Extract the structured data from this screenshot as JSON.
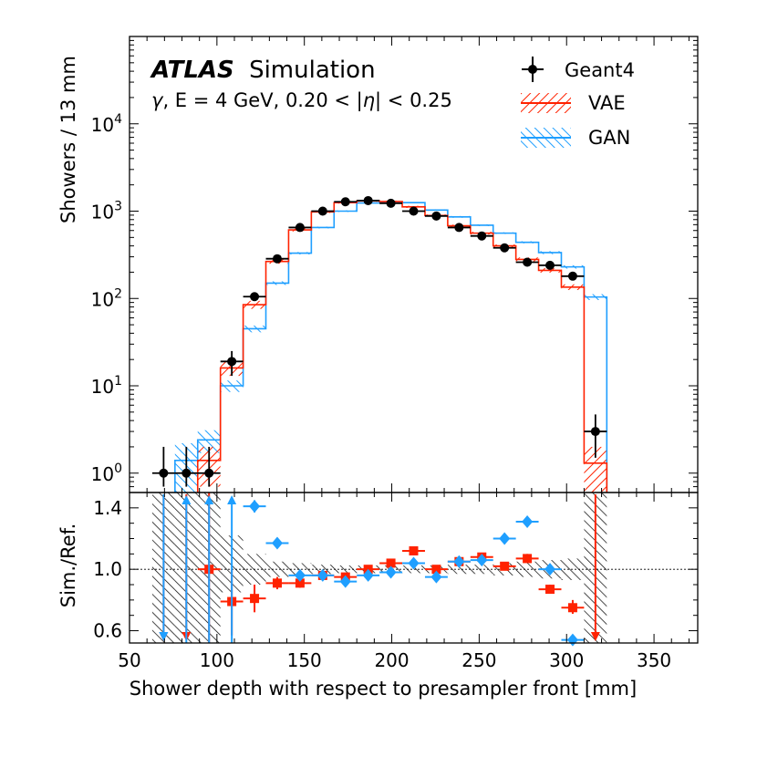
{
  "chart_data": [
    {
      "panel": "main",
      "type": "histogram",
      "title_bold": "ATLAS",
      "title_rest": "Simulation",
      "subtitle_gamma": "γ",
      "subtitle_eta": "η",
      "subtitle_a": ", E = 4 GeV, 0.20 < |",
      "subtitle_b": "| < 0.25",
      "ylabel": "Showers / 13 mm",
      "yscale": "log",
      "ylim": [
        0.6,
        100000
      ],
      "xlim": [
        50,
        375
      ],
      "y_tick_base": "10",
      "y_tick_exponents": [
        "0",
        "1",
        "2",
        "3",
        "4"
      ],
      "bin_edges": [
        63,
        76,
        89,
        102,
        115,
        128,
        141,
        154,
        167,
        180,
        193,
        206,
        219,
        232,
        245,
        258,
        271,
        284,
        297,
        310,
        323
      ],
      "legend": [
        "Geant4",
        "VAE",
        "GAN"
      ],
      "series": [
        {
          "name": "Geant4",
          "style": "points",
          "x": [
            69.5,
            82.5,
            95.5,
            108.5,
            121.5,
            134.5,
            147.5,
            160.5,
            173.5,
            186.5,
            199.5,
            212.5,
            225.5,
            238.5,
            251.5,
            264.5,
            277.5,
            290.5,
            303.5,
            316.5
          ],
          "values": [
            1,
            1,
            1,
            19,
            105,
            285,
            650,
            1000,
            1280,
            1320,
            1230,
            1000,
            880,
            650,
            520,
            380,
            260,
            240,
            180,
            3
          ],
          "err_low": [
            0.7,
            0.7,
            0.7,
            13,
            95,
            267,
            625,
            970,
            1245,
            1285,
            1195,
            970,
            850,
            625,
            497,
            360,
            244,
            225,
            167,
            1.5
          ],
          "err_high": [
            2.0,
            2.0,
            2.0,
            25,
            115,
            302,
            675,
            1030,
            1315,
            1355,
            1265,
            1030,
            910,
            675,
            543,
            400,
            276,
            256,
            193,
            4.7
          ]
        },
        {
          "name": "VAE",
          "style": "hatched-band-red",
          "values": [
            null,
            null,
            1.4,
            16,
            85,
            265,
            610,
            980,
            1250,
            1310,
            1290,
            1120,
            890,
            680,
            560,
            400,
            280,
            210,
            135,
            1.3
          ],
          "band_low": [
            null,
            null,
            0.7,
            13,
            76,
            250,
            585,
            955,
            1220,
            1280,
            1260,
            1090,
            865,
            660,
            540,
            385,
            265,
            198,
            125,
            0.6
          ],
          "band_high": [
            null,
            null,
            2.0,
            19,
            94,
            280,
            635,
            1005,
            1280,
            1340,
            1320,
            1150,
            915,
            700,
            580,
            415,
            295,
            222,
            145,
            2.0
          ]
        },
        {
          "name": "GAN",
          "style": "hatched-band-blue",
          "values": [
            null,
            1.4,
            2.4,
            10,
            45,
            150,
            330,
            650,
            1000,
            1240,
            1280,
            1250,
            1030,
            860,
            690,
            560,
            440,
            335,
            230,
            104
          ],
          "band_low": [
            null,
            0.6,
            1.7,
            8.5,
            41,
            143,
            320,
            635,
            980,
            1220,
            1260,
            1230,
            1010,
            840,
            675,
            548,
            428,
            322,
            220,
            96
          ],
          "band_high": [
            null,
            2.2,
            3.1,
            11.5,
            49,
            157,
            340,
            665,
            1020,
            1260,
            1300,
            1270,
            1050,
            880,
            705,
            572,
            452,
            348,
            240,
            112
          ]
        }
      ]
    },
    {
      "panel": "ratio",
      "type": "scatter",
      "ylabel": "Sim./Ref.",
      "xlabel": "Shower depth with respect to presampler front [mm]",
      "ylim": [
        0.52,
        1.5
      ],
      "xlim": [
        50,
        375
      ],
      "y_ticks": [
        "0.6",
        "1.0",
        "1.4"
      ],
      "x_ticks": [
        "50",
        "100",
        "150",
        "200",
        "250",
        "300",
        "350"
      ],
      "reference_line": 1.0,
      "reference_band_low": [
        0.5,
        0.5,
        0.5,
        0.85,
        0.9,
        0.95,
        0.96,
        0.97,
        0.975,
        0.975,
        0.975,
        0.975,
        0.975,
        0.97,
        0.97,
        0.96,
        0.95,
        0.94,
        0.93,
        0.5
      ],
      "reference_band_high": [
        1.5,
        1.5,
        1.5,
        1.22,
        1.1,
        1.05,
        1.04,
        1.03,
        1.025,
        1.025,
        1.025,
        1.025,
        1.025,
        1.03,
        1.03,
        1.04,
        1.05,
        1.06,
        1.07,
        1.5
      ],
      "series": [
        {
          "name": "VAE",
          "marker": "square",
          "color": "#ff2200",
          "x": [
            95.5,
            108.5,
            121.5,
            134.5,
            147.5,
            160.5,
            173.5,
            186.5,
            199.5,
            212.5,
            225.5,
            238.5,
            251.5,
            264.5,
            277.5,
            290.5,
            303.5
          ],
          "values": [
            1.0,
            0.79,
            0.81,
            0.91,
            0.91,
            0.96,
            0.95,
            1.0,
            1.04,
            1.12,
            1.0,
            1.05,
            1.08,
            1.02,
            1.07,
            0.87,
            0.75
          ],
          "err_low": [
            0.5,
            0.57,
            0.72,
            0.87,
            0.88,
            0.94,
            0.94,
            0.99,
            1.03,
            1.11,
            0.99,
            1.04,
            1.06,
            1.0,
            1.05,
            0.85,
            0.71
          ],
          "err_high": [
            1.5,
            1.0,
            0.9,
            0.95,
            0.94,
            0.98,
            0.97,
            1.02,
            1.06,
            1.14,
            1.02,
            1.07,
            1.1,
            1.04,
            1.1,
            0.9,
            0.8
          ],
          "arrows": [
            {
              "x": 69.5,
              "direction": "down"
            },
            {
              "x": 82.5,
              "direction": "down"
            },
            {
              "x": 316.5,
              "direction": "down"
            }
          ]
        },
        {
          "name": "GAN",
          "marker": "diamond",
          "color": "#1f9fff",
          "x": [
            121.5,
            134.5,
            147.5,
            160.5,
            173.5,
            186.5,
            199.5,
            212.5,
            225.5,
            238.5,
            251.5,
            264.5,
            277.5,
            290.5,
            303.5
          ],
          "values": [
            1.41,
            1.17,
            0.96,
            0.96,
            0.92,
            0.96,
            0.98,
            1.04,
            0.95,
            1.05,
            1.06,
            1.2,
            1.31,
            1.0,
            0.54
          ],
          "err_low": [
            1.37,
            1.15,
            0.94,
            0.94,
            0.9,
            0.94,
            0.96,
            1.02,
            0.93,
            1.03,
            1.04,
            1.18,
            1.28,
            0.98,
            0.52
          ],
          "err_high": [
            1.45,
            1.19,
            0.98,
            0.98,
            0.94,
            0.98,
            1.0,
            1.06,
            0.97,
            1.07,
            1.08,
            1.22,
            1.34,
            1.02,
            0.56
          ],
          "arrows": [
            {
              "x": 69.5,
              "direction": "down"
            },
            {
              "x": 82.5,
              "direction": "up"
            },
            {
              "x": 95.5,
              "direction": "up"
            },
            {
              "x": 108.5,
              "direction": "up"
            }
          ]
        }
      ]
    }
  ]
}
